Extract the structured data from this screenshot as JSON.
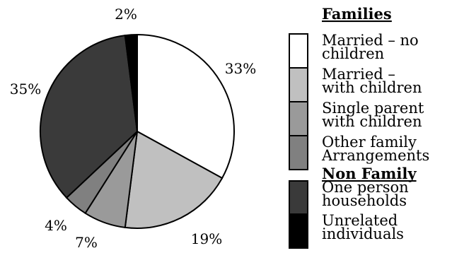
{
  "chart_data": {
    "type": "pie",
    "categories": [
      "Married – no children",
      "Married – with children",
      "Single parent with children",
      "Other family Arrangements",
      "One person households",
      "Unrelated individuals"
    ],
    "values": [
      33,
      19,
      7,
      4,
      35,
      2
    ],
    "value_labels": [
      "33%",
      "19%",
      "7%",
      "4%",
      "35%",
      "2%"
    ],
    "colors": [
      "#ffffff",
      "#c0c0c0",
      "#9a9a9a",
      "#808080",
      "#3a3a3a",
      "#000000"
    ],
    "legend": {
      "placement": "right",
      "groups": [
        {
          "heading": "Families",
          "items": [
            {
              "lines": [
                "Married – no",
                "children"
              ]
            },
            {
              "lines": [
                "Married –",
                "with children"
              ]
            },
            {
              "lines": [
                "Single parent",
                "with children"
              ]
            },
            {
              "lines": [
                "Other family",
                "Arrangements"
              ]
            }
          ]
        },
        {
          "heading": "Non Family",
          "items": [
            {
              "lines": [
                "One person",
                "households"
              ]
            },
            {
              "lines": [
                "Unrelated",
                "individuals"
              ]
            }
          ]
        }
      ]
    }
  }
}
